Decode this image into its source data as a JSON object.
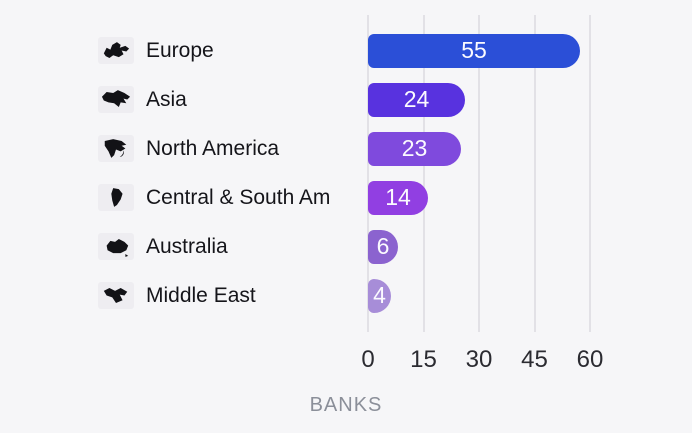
{
  "chart_data": {
    "type": "bar",
    "orientation": "horizontal",
    "title": "",
    "xlabel": "BANKS",
    "categories": [
      "Europe",
      "Asia",
      "North America",
      "Central & South Am",
      "Australia",
      "Middle East"
    ],
    "values": [
      55,
      24,
      23,
      14,
      6,
      4
    ],
    "bar_colors": [
      "#2b4fd7",
      "#5832df",
      "#7f4add",
      "#913fe2",
      "#8b63cf",
      "#a78dd8"
    ],
    "icons": [
      "europe-map-icon",
      "asia-map-icon",
      "north-america-map-icon",
      "central-south-america-map-icon",
      "australia-map-icon",
      "middle-east-map-icon"
    ],
    "x_ticks": [
      "0",
      "15",
      "30",
      "45",
      "60"
    ],
    "xlim": [
      0,
      60
    ],
    "grid": "vertical",
    "value_labels": "inside-center",
    "legend": "none"
  },
  "colors": {
    "background": "#f6f6f8",
    "gridline": "#e2e1e6",
    "category_text": "#15151a",
    "tick_text": "#2b2b31",
    "axis_label_text": "#8b8f99",
    "value_text": "#fbfaff",
    "icon_silhouette": "#121216"
  }
}
